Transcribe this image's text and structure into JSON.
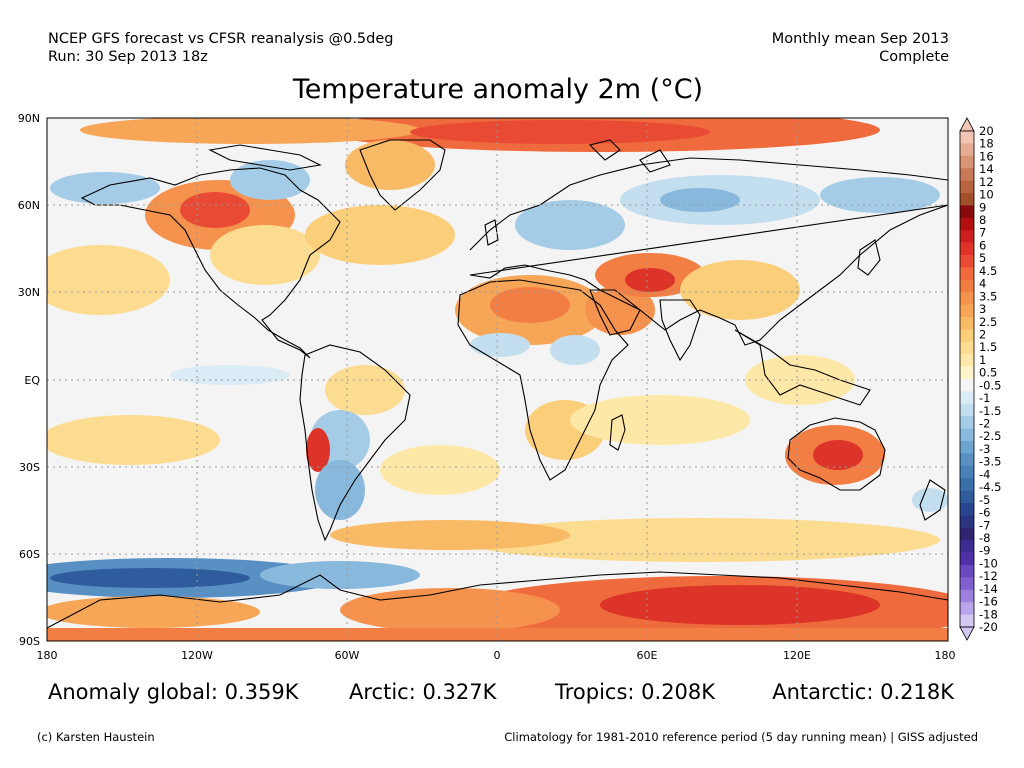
{
  "header": {
    "left_line1": "NCEP GFS forecast vs CFSR reanalysis @0.5deg",
    "left_line2": "Run: 30 Sep 2013 18z",
    "right_line1": "Monthly mean Sep 2013",
    "right_line2": "Complete"
  },
  "title": "Temperature anomaly 2m (°C)",
  "map": {
    "lat_labels": [
      "90N",
      "60N",
      "30N",
      "EQ",
      "30S",
      "60S",
      "90S"
    ],
    "lon_labels": [
      "180",
      "120W",
      "60W",
      "0",
      "60E",
      "120E",
      "180"
    ],
    "ocean_color": "#f4f4f4",
    "coast_color": "#000000"
  },
  "colorbar": {
    "labels": [
      "20",
      "18",
      "16",
      "14",
      "12",
      "10",
      "9",
      "8",
      "7",
      "6",
      "5",
      "4.5",
      "4",
      "3.5",
      "3",
      "2.5",
      "2",
      "1.5",
      "1",
      "0.5",
      "-0.5",
      "-1",
      "-1.5",
      "-2",
      "-2.5",
      "-3",
      "-3.5",
      "-4",
      "-4.5",
      "-5",
      "-6",
      "-7",
      "-8",
      "-9",
      "-10",
      "-12",
      "-14",
      "-16",
      "-18",
      "-20"
    ],
    "colors": [
      "#f2c4b4",
      "#e6ac94",
      "#d99474",
      "#c87a58",
      "#b8643f",
      "#a0502c",
      "#880a0a",
      "#b01010",
      "#cc2020",
      "#dc3428",
      "#e84a34",
      "#ef6a3c",
      "#f27e44",
      "#f5924e",
      "#f7a658",
      "#f9ba66",
      "#fbce7a",
      "#fcdc90",
      "#fde8a8",
      "#fef4cc",
      "#f4f4f4",
      "#dcecf6",
      "#c2deef",
      "#a4cce6",
      "#88b8dc",
      "#6ea4d0",
      "#5890c4",
      "#4880b8",
      "#3a70aa",
      "#2e5c9c",
      "#28468e",
      "#2a3480",
      "#302470",
      "#3e2c90",
      "#5030a8",
      "#6a48c0",
      "#8060d0",
      "#9c80dc",
      "#b8a4e8",
      "#d4c8f2"
    ]
  },
  "stats": {
    "global": "Anomaly global: 0.359K",
    "arctic": "Arctic: 0.327K",
    "tropics": "Tropics: 0.208K",
    "antarctic": "Antarctic: 0.218K"
  },
  "footer": {
    "left": "(c) Karsten Haustein",
    "right": "Climatology for 1981-2010 reference period (5 day running mean) | GISS adjusted"
  }
}
